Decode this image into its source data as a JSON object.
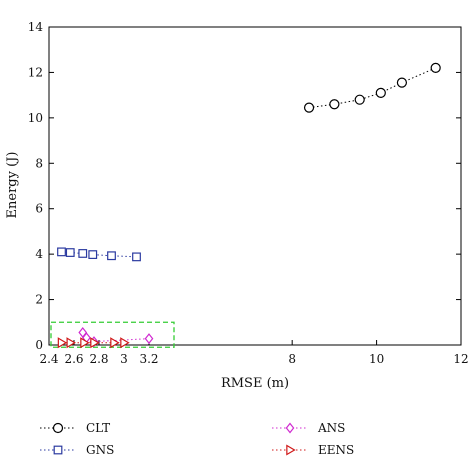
{
  "chart_data": {
    "type": "scatter",
    "xlabel": "RMSE (m)",
    "ylabel": "Energy (J)",
    "ylim": [
      0,
      14
    ],
    "x_axis_broken": true,
    "x_segment_left": {
      "range": [
        2.4,
        3.4
      ],
      "ticks": [
        "2.4",
        "2.6",
        "2.8",
        "3",
        "3.2"
      ],
      "tick_values": [
        2.4,
        2.6,
        2.8,
        3.0,
        3.2
      ]
    },
    "x_segment_right": {
      "range": [
        5.2,
        12
      ],
      "ticks": [
        "8",
        "10",
        "12"
      ],
      "tick_values": [
        8,
        10,
        12
      ]
    },
    "y_ticks": [
      "0",
      "2",
      "4",
      "6",
      "8",
      "10",
      "12",
      "14"
    ],
    "y_tick_values": [
      0,
      2,
      4,
      6,
      8,
      10,
      12,
      14
    ],
    "grid": false,
    "legend_position": "bottom",
    "series": [
      {
        "name": "CLT",
        "marker": "circle",
        "color": "#000000",
        "x": [
          8.4,
          9.0,
          9.6,
          10.1,
          10.6,
          11.4
        ],
        "y": [
          10.45,
          10.6,
          10.8,
          11.1,
          11.55,
          12.2
        ]
      },
      {
        "name": "GNS",
        "marker": "square",
        "color": "#2b3aa0",
        "x": [
          2.5,
          2.57,
          2.67,
          2.75,
          2.9,
          3.1
        ],
        "y": [
          4.1,
          4.07,
          4.03,
          3.98,
          3.93,
          3.88
        ]
      },
      {
        "name": "ANS",
        "marker": "diamond",
        "color": "#d02ad0",
        "x": [
          2.67,
          2.7,
          2.76,
          3.2
        ],
        "y": [
          0.55,
          0.32,
          0.15,
          0.28
        ]
      },
      {
        "name": "EENS",
        "marker": "triangle-right",
        "color": "#d01818",
        "x": [
          2.5,
          2.57,
          2.68,
          2.76,
          2.92,
          3.0
        ],
        "y": [
          0.1,
          0.1,
          0.1,
          0.1,
          0.1,
          0.1
        ]
      }
    ],
    "annotation_box": {
      "x_range": [
        2.4,
        3.4
      ],
      "y_range": [
        -0.1,
        1.0
      ],
      "color": "#33cc33",
      "style": "dashed"
    }
  }
}
